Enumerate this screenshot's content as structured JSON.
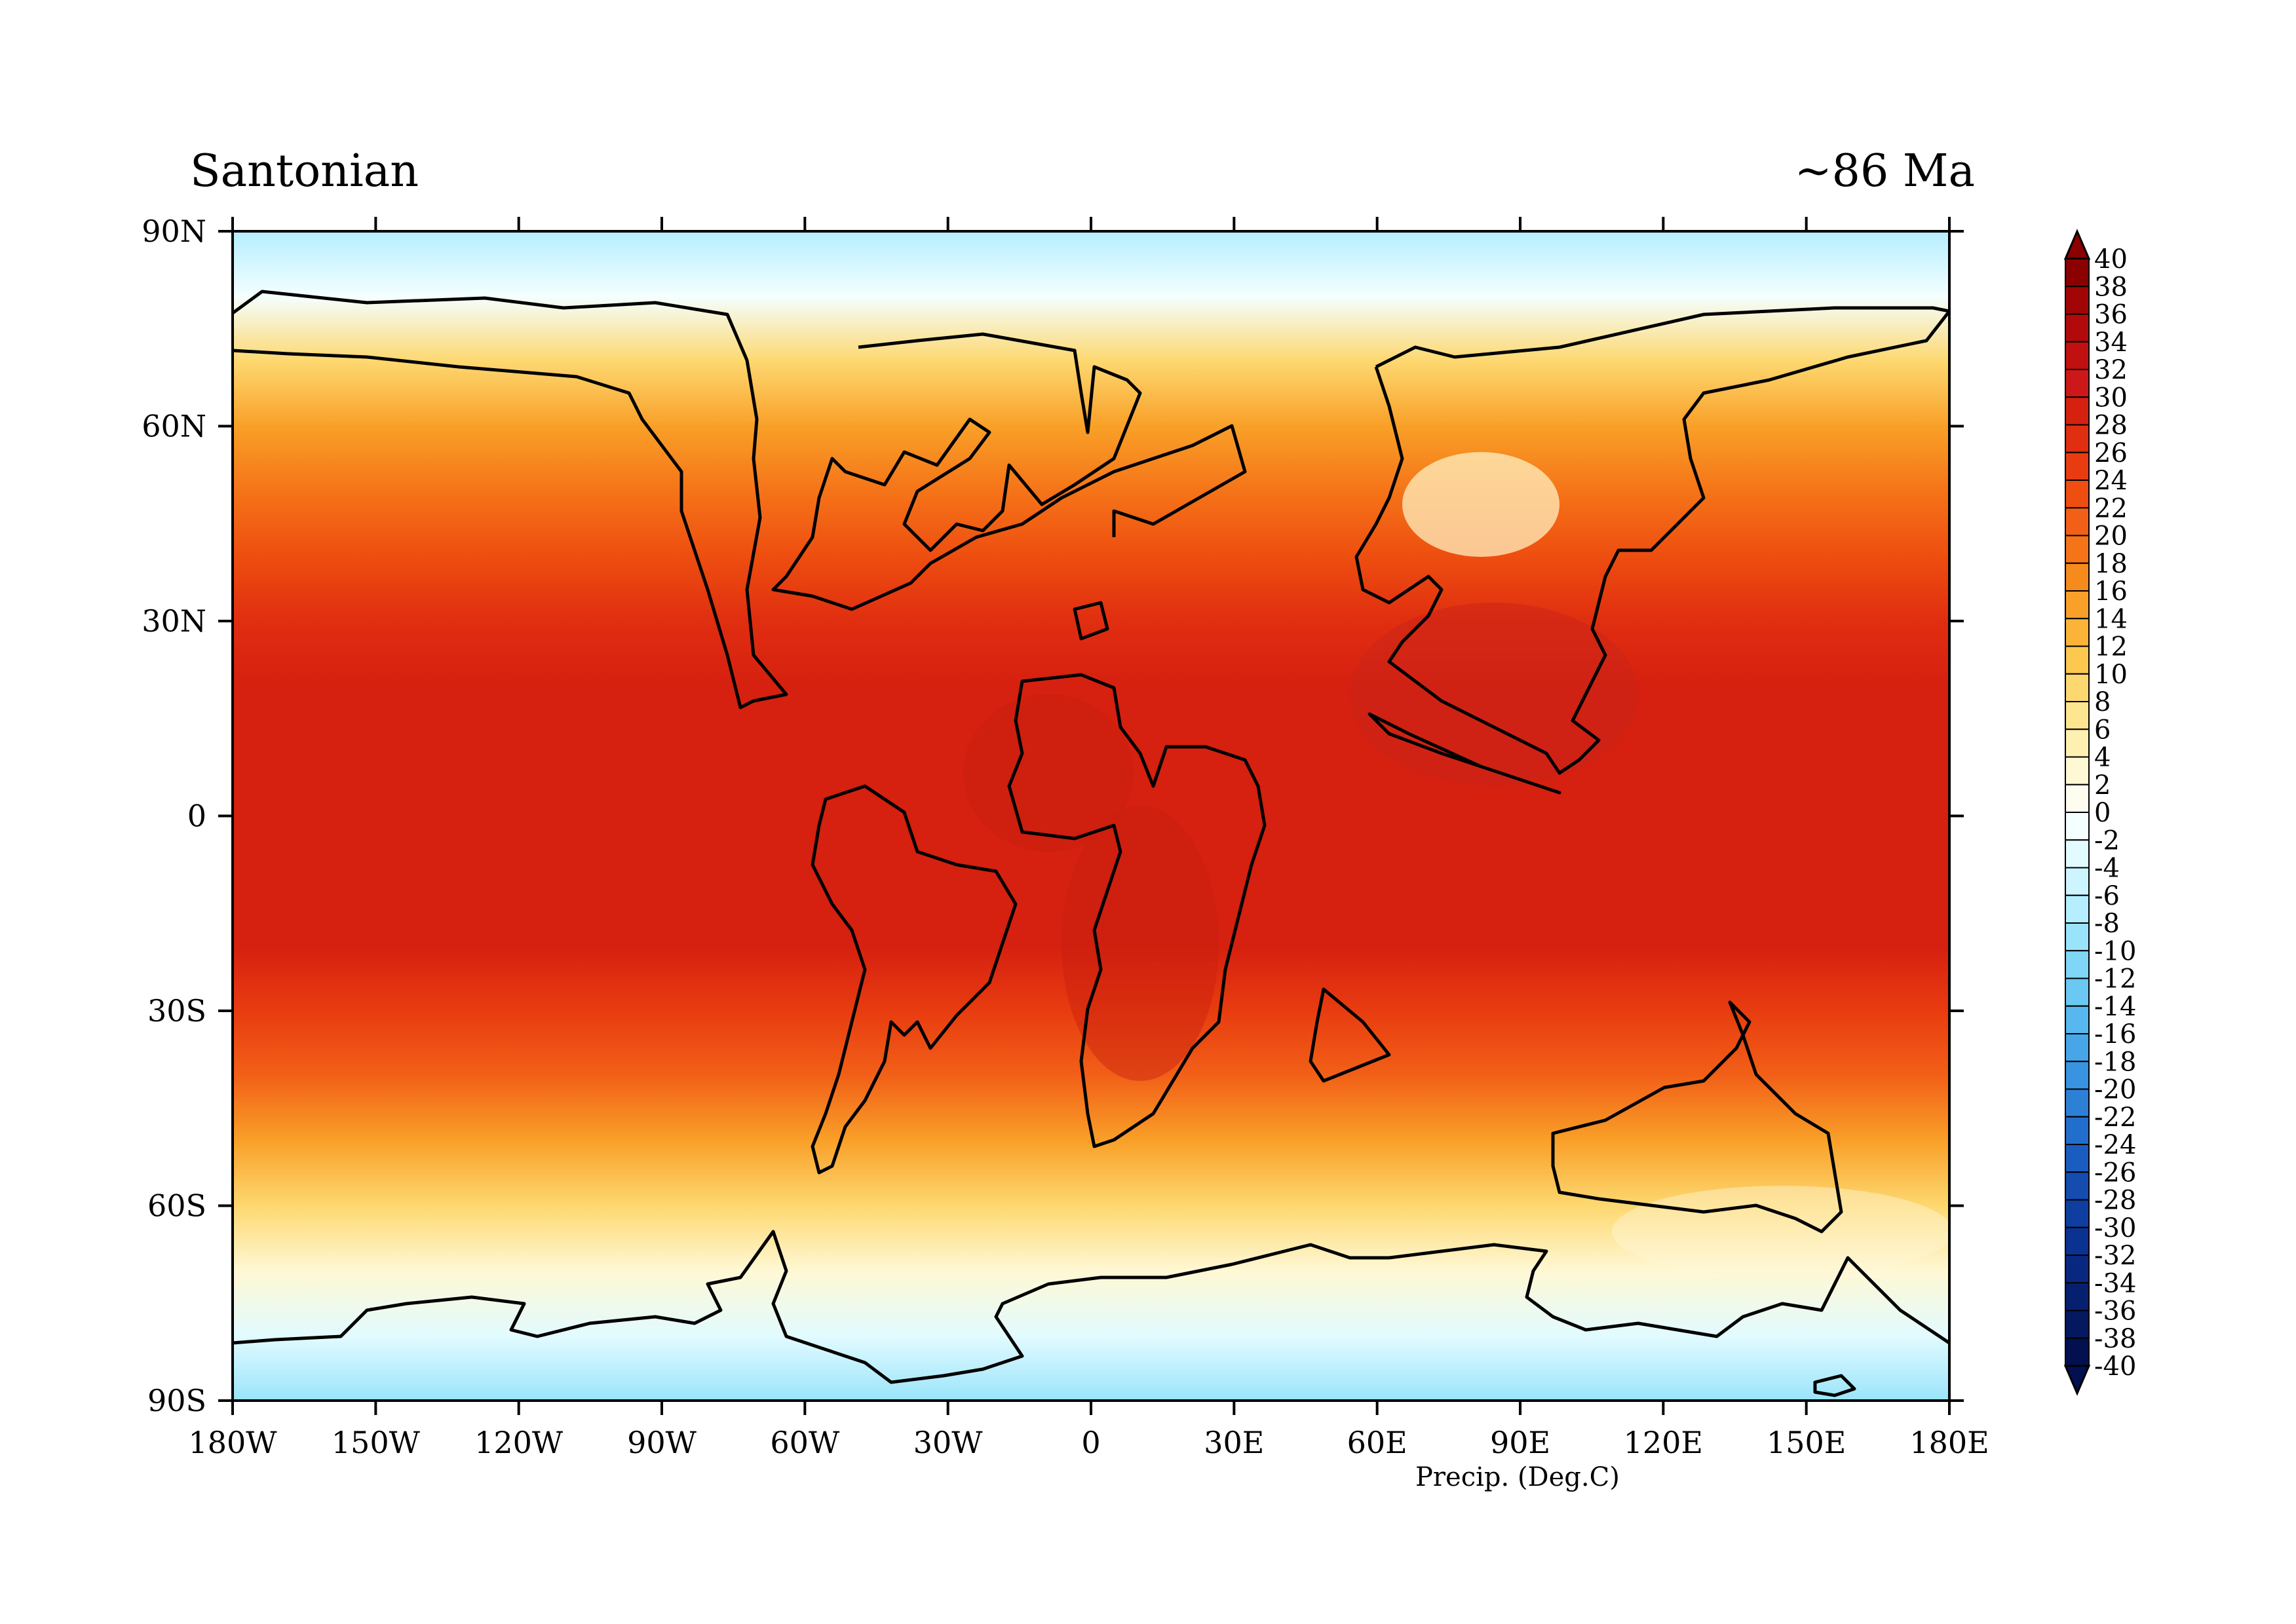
{
  "title_left": "Santonian",
  "title_right": "~86 Ma",
  "x_ticks": [
    {
      "label": "180W",
      "lon": -180
    },
    {
      "label": "150W",
      "lon": -150
    },
    {
      "label": "120W",
      "lon": -120
    },
    {
      "label": "90W",
      "lon": -90
    },
    {
      "label": "60W",
      "lon": -60
    },
    {
      "label": "30W",
      "lon": -30
    },
    {
      "label": "0",
      "lon": 0
    },
    {
      "label": "30E",
      "lon": 30
    },
    {
      "label": "60E",
      "lon": 60
    },
    {
      "label": "90E",
      "lon": 90
    },
    {
      "label": "120E",
      "lon": 120
    },
    {
      "label": "150E",
      "lon": 150
    },
    {
      "label": "180E",
      "lon": 180
    }
  ],
  "y_ticks": [
    {
      "label": "90N",
      "lat": 90
    },
    {
      "label": "60N",
      "lat": 60
    },
    {
      "label": "30N",
      "lat": 30
    },
    {
      "label": "0",
      "lat": 0
    },
    {
      "label": "30S",
      "lat": -30
    },
    {
      "label": "60S",
      "lat": -60
    },
    {
      "label": "90S",
      "lat": -90
    }
  ],
  "colorbar": {
    "label": "Precip. (Deg.C)",
    "levels": [
      "40",
      "38",
      "36",
      "34",
      "32",
      "30",
      "28",
      "26",
      "24",
      "22",
      "20",
      "18",
      "16",
      "14",
      "12",
      "10",
      "8",
      "6",
      "4",
      "2",
      "0",
      "-2",
      "-4",
      "-6",
      "-8",
      "-10",
      "-12",
      "-14",
      "-16",
      "-18",
      "-20",
      "-22",
      "-24",
      "-26",
      "-28",
      "-30",
      "-32",
      "-34",
      "-36",
      "-38",
      "-40"
    ],
    "colors": [
      "#8b0000",
      "#a10505",
      "#b20a0a",
      "#c01010",
      "#cc1818",
      "#d62010",
      "#e02e10",
      "#e83c10",
      "#ee4e10",
      "#f26018",
      "#f57418",
      "#f78a1c",
      "#f9a028",
      "#fbb438",
      "#fcc850",
      "#fdd870",
      "#fee690",
      "#fef0b0",
      "#fff8d4",
      "#fffdf0",
      "#f4ffff",
      "#e2fbff",
      "#ccf5ff",
      "#b4eeff",
      "#9ae4fb",
      "#80d6f6",
      "#6ac8f2",
      "#56b8ee",
      "#46a6e8",
      "#3894e0",
      "#2c80d6",
      "#226ecc",
      "#1a5cc0",
      "#144cb0",
      "#0e3ea0",
      "#0a3290",
      "#082880",
      "#062070",
      "#041860",
      "#021050"
    ]
  },
  "chart_data": {
    "type": "heatmap",
    "title": "Santonian",
    "subtitle": "~86 Ma",
    "xlim": [
      -180,
      180
    ],
    "ylim": [
      -90,
      90
    ],
    "colorbar_label": "Precip. (Deg.C)",
    "colorbar_range": [
      -40,
      40
    ],
    "colorbar_step": 2,
    "zonal_profile": [
      {
        "lat": 90,
        "value": -6
      },
      {
        "lat": 80,
        "value": 0
      },
      {
        "lat": 70,
        "value": 10
      },
      {
        "lat": 60,
        "value": 16
      },
      {
        "lat": 50,
        "value": 20
      },
      {
        "lat": 40,
        "value": 24
      },
      {
        "lat": 30,
        "value": 27
      },
      {
        "lat": 20,
        "value": 29
      },
      {
        "lat": 10,
        "value": 30
      },
      {
        "lat": 0,
        "value": 29
      },
      {
        "lat": -10,
        "value": 30
      },
      {
        "lat": -20,
        "value": 29
      },
      {
        "lat": -30,
        "value": 26
      },
      {
        "lat": -40,
        "value": 22
      },
      {
        "lat": -50,
        "value": 16
      },
      {
        "lat": -60,
        "value": 10
      },
      {
        "lat": -70,
        "value": 4
      },
      {
        "lat": -80,
        "value": -2
      },
      {
        "lat": -90,
        "value": -8
      }
    ]
  }
}
